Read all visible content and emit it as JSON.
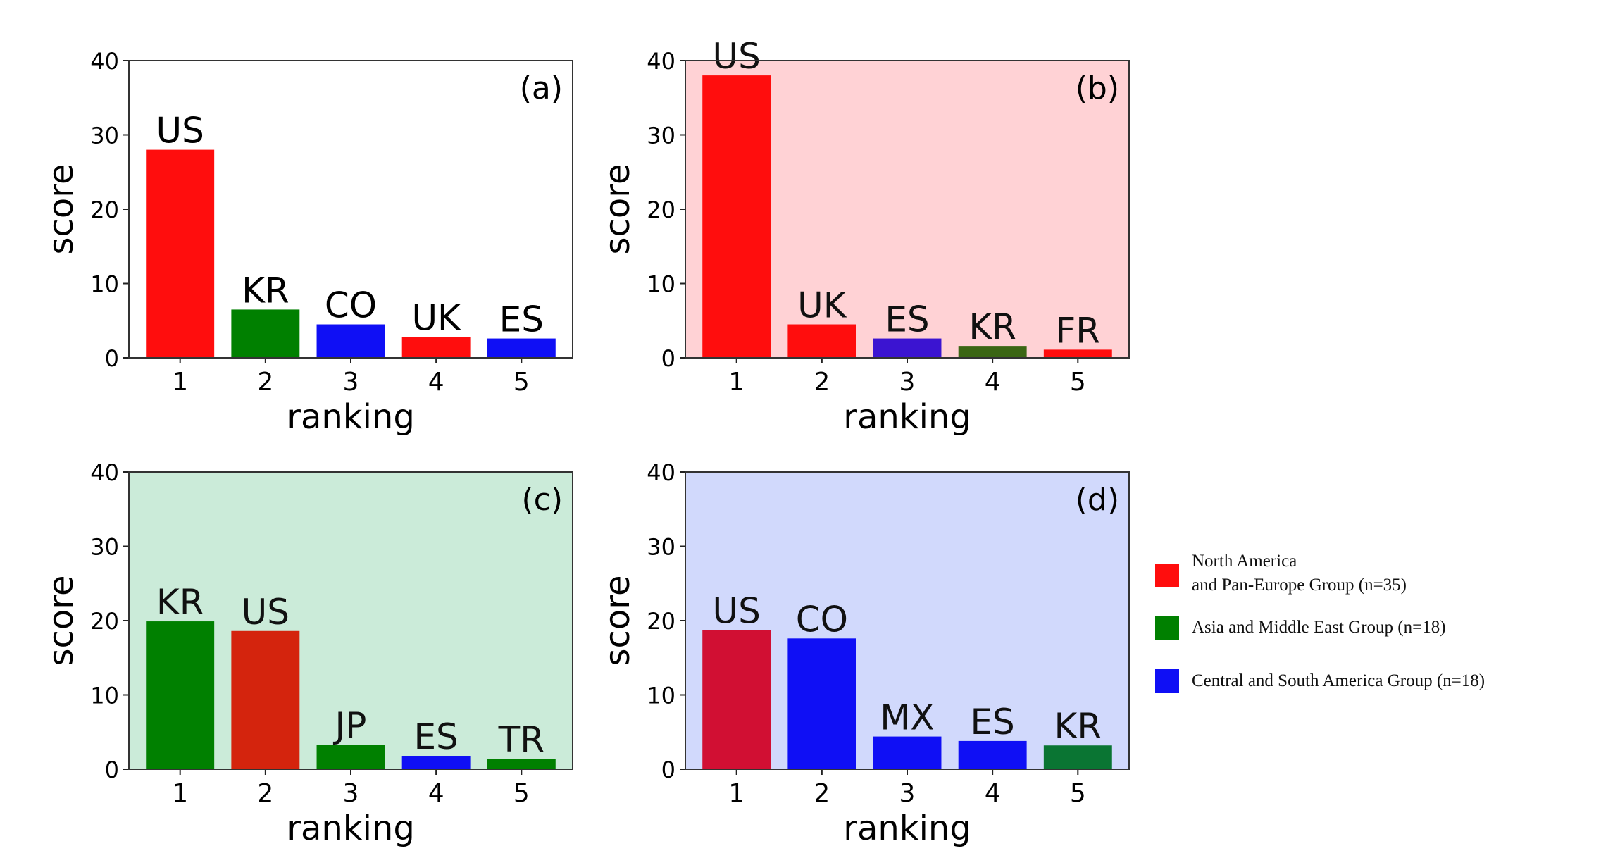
{
  "colors": {
    "red": "#ff0d0d",
    "green": "#008000",
    "blue": "#0f0ff5",
    "dark_red": "#d4240d",
    "crimson": "#d10f33",
    "indigo": "#3b14d1",
    "olive": "#3b6614",
    "forest": "#0a7533",
    "panel_b_bg": "#ffd2d5",
    "panel_c_bg": "#cbebd9",
    "panel_d_bg": "#d1d9fc",
    "white": "#ffffff"
  },
  "chart_data": [
    {
      "type": "bar",
      "panel_label": "(a)",
      "categories": [
        "1",
        "2",
        "3",
        "4",
        "5"
      ],
      "values": [
        28,
        6.5,
        4.5,
        2.8,
        2.6
      ],
      "bar_labels": [
        "US",
        "KR",
        "CO",
        "UK",
        "ES"
      ],
      "bar_colors": [
        "red",
        "green",
        "blue",
        "red",
        "blue"
      ],
      "background": "white",
      "xlabel": "ranking",
      "ylabel": "score",
      "ylim": [
        0,
        40
      ],
      "yticks": [
        "0",
        "10",
        "20",
        "30",
        "40"
      ]
    },
    {
      "type": "bar",
      "panel_label": "(b)",
      "categories": [
        "1",
        "2",
        "3",
        "4",
        "5"
      ],
      "values": [
        38,
        4.5,
        2.6,
        1.6,
        1.1
      ],
      "bar_labels": [
        "US",
        "UK",
        "ES",
        "KR",
        "FR"
      ],
      "bar_colors": [
        "red",
        "red",
        "indigo",
        "olive",
        "red"
      ],
      "background": "panel_b_bg",
      "xlabel": "ranking",
      "ylabel": "score",
      "ylim": [
        0,
        40
      ],
      "yticks": [
        "0",
        "10",
        "20",
        "30",
        "40"
      ]
    },
    {
      "type": "bar",
      "panel_label": "(c)",
      "categories": [
        "1",
        "2",
        "3",
        "4",
        "5"
      ],
      "values": [
        19.9,
        18.6,
        3.3,
        1.8,
        1.4
      ],
      "bar_labels": [
        "KR",
        "US",
        "JP",
        "ES",
        "TR"
      ],
      "bar_colors": [
        "green",
        "dark_red",
        "green",
        "blue",
        "green"
      ],
      "background": "panel_c_bg",
      "xlabel": "ranking",
      "ylabel": "score",
      "ylim": [
        0,
        40
      ],
      "yticks": [
        "0",
        "10",
        "20",
        "30",
        "40"
      ]
    },
    {
      "type": "bar",
      "panel_label": "(d)",
      "categories": [
        "1",
        "2",
        "3",
        "4",
        "5"
      ],
      "values": [
        18.7,
        17.6,
        4.4,
        3.8,
        3.2
      ],
      "bar_labels": [
        "US",
        "CO",
        "MX",
        "ES",
        "KR"
      ],
      "bar_colors": [
        "crimson",
        "blue",
        "blue",
        "blue",
        "forest"
      ],
      "background": "panel_d_bg",
      "xlabel": "ranking",
      "ylabel": "score",
      "ylim": [
        0,
        40
      ],
      "yticks": [
        "0",
        "10",
        "20",
        "30",
        "40"
      ]
    }
  ],
  "legend": {
    "items": [
      {
        "lines": [
          "North America",
          "and Pan-Europe Group (n=35)"
        ],
        "color": "red"
      },
      {
        "lines": [
          "Asia and Middle East Group (n=18)"
        ],
        "color": "green"
      },
      {
        "lines": [
          "Central and South America Group (n=18)"
        ],
        "color": "blue"
      }
    ]
  }
}
